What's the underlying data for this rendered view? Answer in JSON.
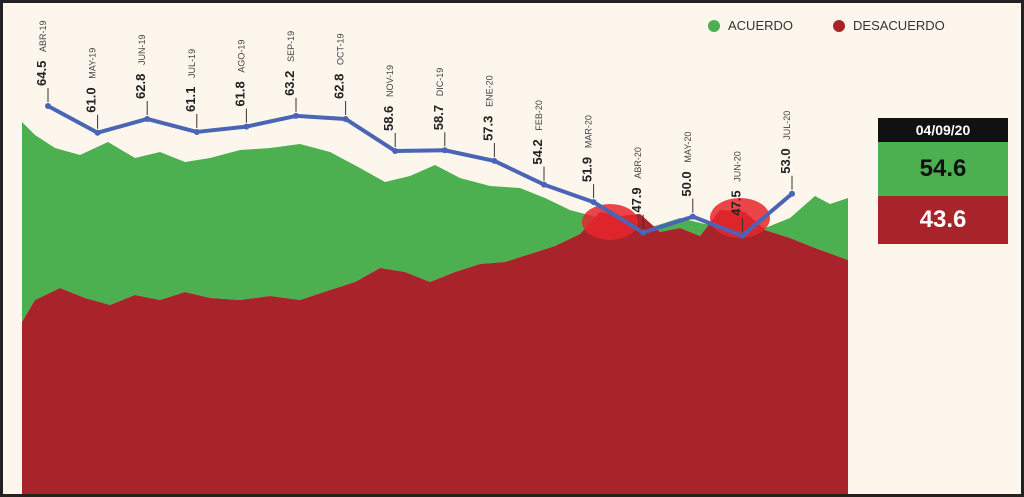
{
  "legend": {
    "agree": "ACUERDO",
    "disagree": "DESACUERDO"
  },
  "colors": {
    "agree": "#4caf50",
    "disagree": "#a8232a",
    "line": "#4a65b5",
    "background": "#fdf6ec"
  },
  "panel": {
    "date": "04/09/20",
    "agree": "54.6",
    "disagree": "43.6"
  },
  "chart_data": {
    "type": "line",
    "categories": [
      "ABR-19",
      "MAY-19",
      "JUN-19",
      "JUL-19",
      "AGO-19",
      "SEP-19",
      "OCT-19",
      "NOV-19",
      "DIC-19",
      "ENE-20",
      "FEB-20",
      "MAR-20",
      "ABR-20",
      "MAY-20",
      "JUN-20",
      "JUL-20"
    ],
    "values": [
      64.5,
      61.0,
      62.8,
      61.1,
      61.8,
      63.2,
      62.8,
      58.6,
      58.7,
      57.3,
      54.2,
      51.9,
      47.9,
      50.0,
      47.5,
      53.0
    ],
    "labels": [
      "64.5",
      "61.0",
      "62.8",
      "61.1",
      "61.8",
      "63.2",
      "62.8",
      "58.6",
      "58.7",
      "57.3",
      "54.2",
      "51.9",
      "47.9",
      "50.0",
      "47.5",
      "53.0"
    ],
    "background_areas": [
      {
        "name": "ACUERDO",
        "color": "#4caf50"
      },
      {
        "name": "DESACUERDO",
        "color": "#a8232a"
      }
    ]
  }
}
